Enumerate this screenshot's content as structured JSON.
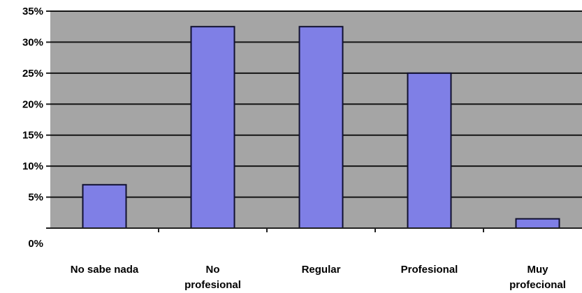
{
  "chart_data": {
    "type": "bar",
    "title": "",
    "xlabel": "",
    "ylabel": "",
    "categories": [
      [
        "No sabe nada"
      ],
      [
        "No",
        "profesional"
      ],
      [
        "Regular"
      ],
      [
        "Profesional"
      ],
      [
        "Muy",
        "profecional"
      ]
    ],
    "values": [
      7,
      32.5,
      32.5,
      25,
      1.5
    ],
    "ylim": [
      0,
      35
    ],
    "yticks": [
      "0%",
      "5%",
      "10%",
      "15%",
      "20%",
      "25%",
      "30%",
      "35%"
    ],
    "grid": true,
    "legend": "none",
    "colors": {
      "bar_fill": "#7f7fe6",
      "bar_stroke": "#101030",
      "plot_background": "#a5a5a5",
      "gridline": "#141414",
      "page_background": "#ffffff"
    }
  }
}
